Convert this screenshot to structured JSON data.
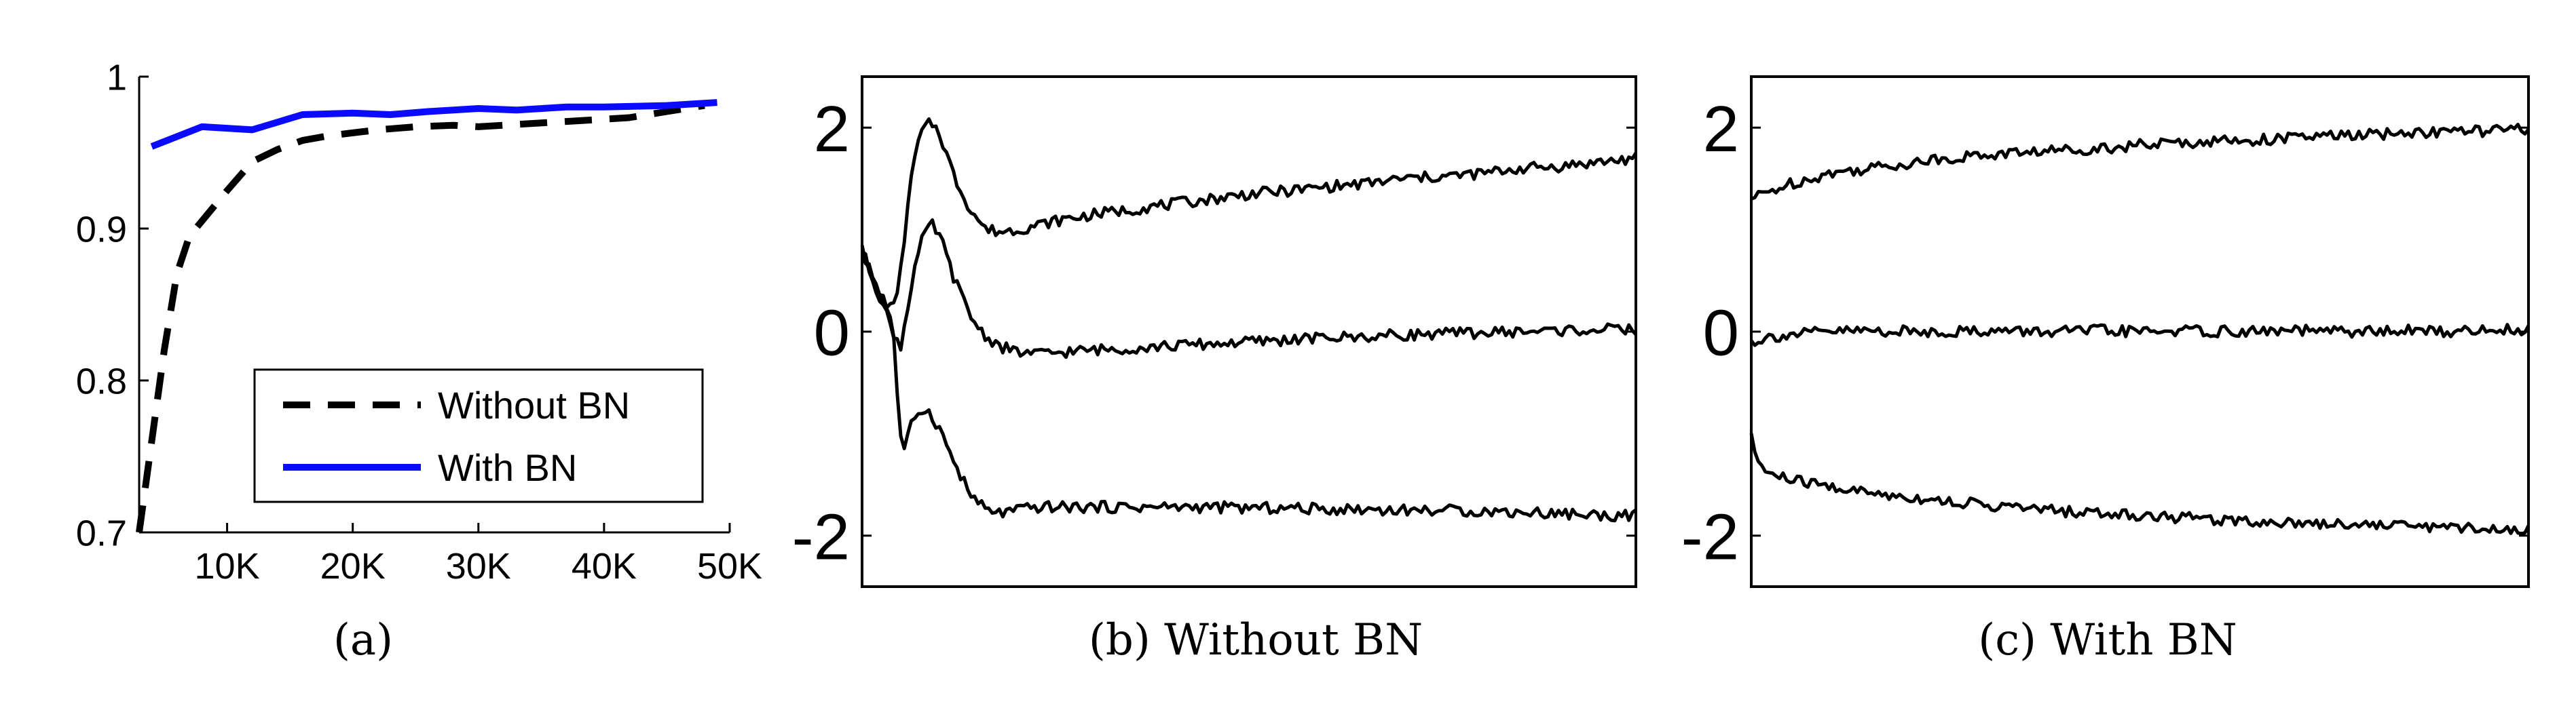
{
  "chart_data": [
    {
      "panel": "a",
      "type": "line",
      "caption": "(a)",
      "xlabel": "",
      "ylabel": "",
      "xlim": [
        3000,
        50000
      ],
      "ylim": [
        0.7,
        1.0
      ],
      "xticks": [
        10000,
        20000,
        30000,
        40000,
        50000
      ],
      "xtick_labels": [
        "10K",
        "20K",
        "30K",
        "40K",
        "50K"
      ],
      "yticks": [
        0.7,
        0.8,
        0.9,
        1.0
      ],
      "ytick_labels": [
        "0.7",
        "0.8",
        "0.9",
        "1"
      ],
      "legend_position": "bottom-right",
      "grid": false,
      "series": [
        {
          "name": "Without BN",
          "color": "#000000",
          "dash": "dashed",
          "x": [
            3000,
            4000,
            5000,
            6000,
            7000,
            8000,
            10000,
            12000,
            14000,
            16000,
            18000,
            20000,
            22000,
            25000,
            28000,
            30000,
            34000,
            38000,
            42000,
            45000,
            48000
          ],
          "y": [
            0.7,
            0.76,
            0.82,
            0.87,
            0.895,
            0.905,
            0.925,
            0.944,
            0.952,
            0.958,
            0.961,
            0.963,
            0.965,
            0.967,
            0.968,
            0.967,
            0.969,
            0.971,
            0.973,
            0.977,
            0.981
          ]
        },
        {
          "name": "With BN",
          "color": "#0a0aff",
          "dash": "solid",
          "x": [
            4000,
            8000,
            12000,
            16000,
            20000,
            23000,
            26000,
            30000,
            33000,
            37000,
            40000,
            45000,
            49000
          ],
          "y": [
            0.954,
            0.967,
            0.965,
            0.975,
            0.976,
            0.975,
            0.977,
            0.979,
            0.978,
            0.98,
            0.98,
            0.981,
            0.983
          ]
        }
      ]
    },
    {
      "panel": "b",
      "type": "line",
      "caption": "(b) Without BN",
      "xlabel": "",
      "ylabel": "",
      "xlim": [
        0,
        200
      ],
      "ylim": [
        -2.5,
        2.5
      ],
      "yticks": [
        -2,
        0,
        2
      ],
      "ytick_labels": [
        "-2",
        "0",
        "2"
      ],
      "grid": false,
      "series": [
        {
          "name": "",
          "color": "#000000",
          "x": [
            0,
            4,
            8,
            10,
            12,
            14,
            16,
            18,
            20,
            24,
            28,
            32,
            36,
            40,
            46,
            52,
            60,
            70,
            80,
            90,
            100,
            110,
            120,
            130,
            140,
            150,
            160,
            170,
            180,
            190,
            200
          ],
          "y": [
            0.8,
            0.4,
            0.2,
            0.6,
            1.3,
            1.8,
            2.0,
            2.05,
            1.95,
            1.5,
            1.2,
            1.0,
            0.98,
            1.0,
            1.05,
            1.1,
            1.15,
            1.2,
            1.25,
            1.3,
            1.35,
            1.38,
            1.42,
            1.45,
            1.5,
            1.52,
            1.55,
            1.6,
            1.62,
            1.66,
            1.7
          ]
        },
        {
          "name": "",
          "color": "#000000",
          "x": [
            0,
            4,
            8,
            10,
            12,
            14,
            16,
            18,
            20,
            24,
            28,
            32,
            36,
            40,
            46,
            52,
            60,
            70,
            80,
            90,
            100,
            110,
            120,
            130,
            140,
            150,
            160,
            170,
            180,
            190,
            200
          ],
          "y": [
            0.8,
            0.4,
            0.0,
            -0.15,
            0.3,
            0.7,
            0.95,
            1.05,
            0.95,
            0.5,
            0.15,
            -0.05,
            -0.15,
            -0.2,
            -0.22,
            -0.2,
            -0.18,
            -0.16,
            -0.14,
            -0.12,
            -0.1,
            -0.08,
            -0.06,
            -0.05,
            -0.03,
            -0.02,
            -0.01,
            0.0,
            0.01,
            0.02,
            0.02
          ]
        },
        {
          "name": "",
          "color": "#000000",
          "x": [
            0,
            4,
            8,
            9,
            10,
            11,
            12,
            14,
            16,
            18,
            20,
            24,
            28,
            32,
            36,
            40,
            46,
            52,
            60,
            70,
            80,
            90,
            100,
            110,
            120,
            130,
            140,
            150,
            160,
            170,
            180,
            190,
            200
          ],
          "y": [
            0.8,
            0.4,
            0.1,
            -0.6,
            -1.0,
            -1.2,
            -1.0,
            -0.8,
            -0.75,
            -0.82,
            -0.95,
            -1.3,
            -1.6,
            -1.75,
            -1.78,
            -1.75,
            -1.72,
            -1.72,
            -1.72,
            -1.72,
            -1.72,
            -1.72,
            -1.73,
            -1.73,
            -1.74,
            -1.74,
            -1.75,
            -1.75,
            -1.76,
            -1.77,
            -1.78,
            -1.8,
            -1.8
          ]
        }
      ]
    },
    {
      "panel": "c",
      "type": "line",
      "caption": "(c) With BN",
      "xlabel": "",
      "ylabel": "",
      "xlim": [
        0,
        200
      ],
      "ylim": [
        -2.5,
        2.5
      ],
      "yticks": [
        -2,
        0,
        2
      ],
      "ytick_labels": [
        "-2",
        "0",
        "2"
      ],
      "grid": false,
      "series": [
        {
          "name": "",
          "color": "#000000",
          "x": [
            0,
            5,
            10,
            20,
            30,
            40,
            50,
            60,
            70,
            80,
            90,
            100,
            110,
            120,
            130,
            140,
            150,
            160,
            170,
            180,
            190,
            200
          ],
          "y": [
            1.3,
            1.38,
            1.45,
            1.55,
            1.6,
            1.65,
            1.7,
            1.73,
            1.76,
            1.78,
            1.8,
            1.83,
            1.85,
            1.87,
            1.88,
            1.9,
            1.92,
            1.93,
            1.95,
            1.96,
            1.97,
            1.98
          ]
        },
        {
          "name": "",
          "color": "#000000",
          "x": [
            0,
            5,
            10,
            20,
            30,
            40,
            50,
            60,
            70,
            80,
            90,
            100,
            110,
            120,
            130,
            140,
            150,
            160,
            170,
            180,
            190,
            200
          ],
          "y": [
            -0.1,
            -0.05,
            -0.03,
            0.0,
            0.01,
            0.0,
            0.0,
            0.01,
            0.0,
            0.0,
            0.01,
            0.0,
            0.01,
            0.0,
            0.0,
            0.01,
            0.0,
            0.0,
            0.01,
            0.0,
            0.02,
            0.02
          ]
        },
        {
          "name": "",
          "color": "#000000",
          "x": [
            0,
            2,
            5,
            10,
            20,
            30,
            40,
            50,
            60,
            70,
            80,
            90,
            100,
            110,
            120,
            130,
            140,
            150,
            160,
            170,
            180,
            190,
            200
          ],
          "y": [
            -1.05,
            -1.3,
            -1.4,
            -1.45,
            -1.52,
            -1.58,
            -1.62,
            -1.66,
            -1.7,
            -1.73,
            -1.76,
            -1.78,
            -1.8,
            -1.82,
            -1.84,
            -1.86,
            -1.87,
            -1.88,
            -1.89,
            -1.9,
            -1.92,
            -1.93,
            -1.95
          ]
        }
      ]
    }
  ]
}
